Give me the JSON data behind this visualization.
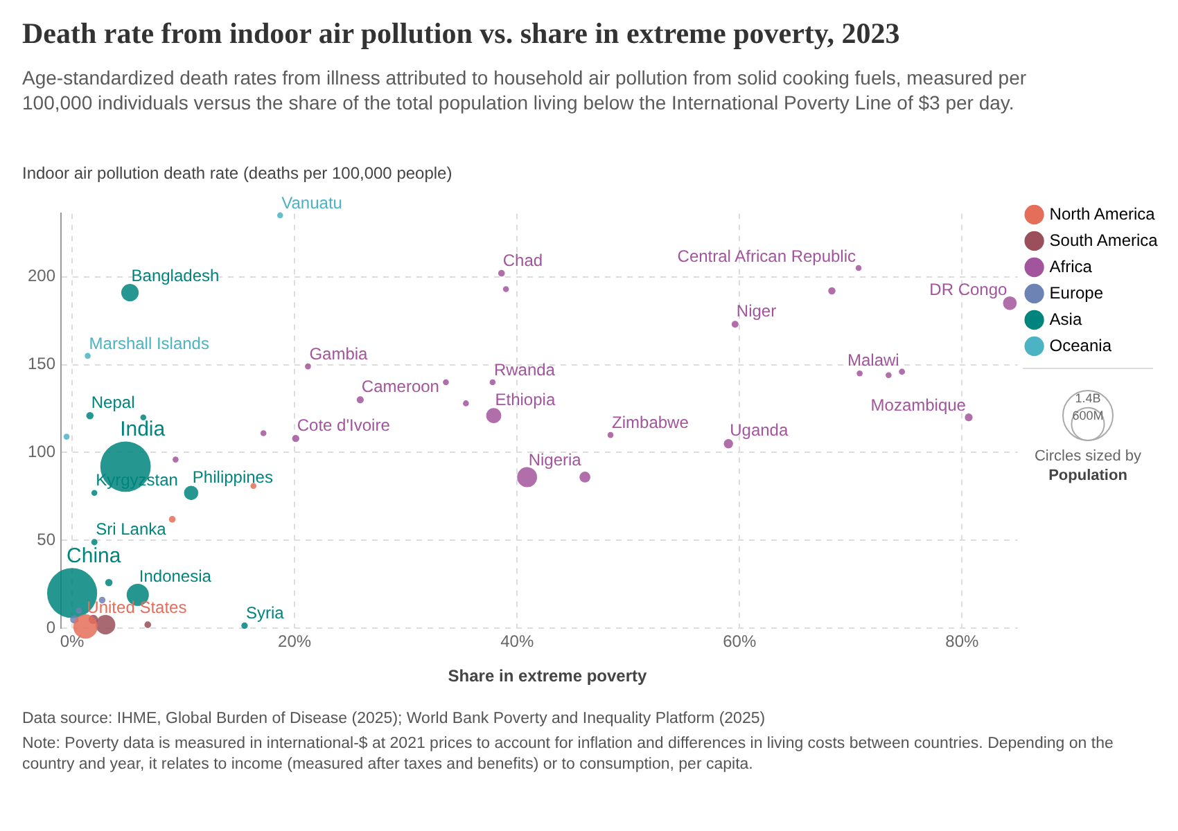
{
  "chart_data": {
    "type": "bubble",
    "title": "Death rate from indoor air pollution vs. share in extreme poverty, 2023",
    "subtitle": "Age-standardized death rates from illness attributed to household air pollution from solid cooking fuels, measured per 100,000 individuals versus the share of the total population living below the International Poverty Line of $3 per day.",
    "ylabel": "Indoor air pollution death rate (deaths per 100,000 people)",
    "xlabel": "Share in extreme poverty",
    "xlim": [
      -1,
      85
    ],
    "xticks": [
      {
        "value": 0,
        "label": "0%"
      },
      {
        "value": 20,
        "label": "20%"
      },
      {
        "value": 40,
        "label": "40%"
      },
      {
        "value": 60,
        "label": "60%"
      },
      {
        "value": 80,
        "label": "80%"
      }
    ],
    "ylim": [
      0,
      236
    ],
    "yticks": [
      0,
      50,
      100,
      150,
      200
    ],
    "grid": true,
    "legend": "top right",
    "marker": "circle",
    "size_legend": [
      {
        "value": 1400,
        "label": "1.4B"
      },
      {
        "value": 600,
        "label": "600M"
      }
    ],
    "series": [
      {
        "name": "North America",
        "color": "#e56e5a",
        "x": [
          1.2,
          9.0,
          16.3
        ],
        "values": [
          1,
          62,
          81
        ],
        "sizes": [
          335,
          25,
          20
        ]
      },
      {
        "name": "South America",
        "color": "#9a4f5b",
        "x": [
          3.0,
          6.8,
          1.9
        ],
        "values": [
          2,
          2,
          5
        ],
        "sizes": [
          216,
          25,
          50
        ]
      },
      {
        "name": "Africa",
        "color": "#a2559c",
        "x": [
          38.6,
          39.0,
          70.7,
          68.3,
          84.3,
          59.6,
          21.2,
          25.9,
          33.6,
          35.4,
          37.8,
          37.9,
          20.1,
          17.2,
          9.3,
          48.4,
          59.0,
          40.9,
          46.1,
          74.6,
          70.8,
          73.4,
          80.6
        ],
        "values": [
          202,
          193,
          205,
          192,
          185,
          173,
          149,
          130,
          140,
          128,
          140,
          121,
          108,
          111,
          96,
          110,
          105,
          86,
          86,
          146,
          145,
          144,
          120
        ],
        "sizes": [
          25,
          20,
          20,
          30,
          105,
          27,
          20,
          28,
          20,
          20,
          20,
          127,
          29,
          20,
          20,
          20,
          49,
          224,
          67,
          21,
          20,
          20,
          34
        ]
      },
      {
        "name": "Europe",
        "color": "#6d83b3",
        "x": [
          0.6,
          2.7,
          0.2
        ],
        "values": [
          10,
          16,
          5
        ],
        "sizes": [
          20,
          25,
          40
        ]
      },
      {
        "name": "Asia",
        "color": "#00847e",
        "x": [
          5.2,
          4.8,
          1.6,
          2.0,
          10.7,
          2.0,
          0,
          5.9,
          15.5,
          6.4,
          3.3
        ],
        "values": [
          191,
          92,
          121,
          77,
          77,
          49,
          20,
          19,
          1.5,
          120,
          26
        ],
        "sizes": [
          171,
          1430,
          30,
          20,
          115,
          22,
          1410,
          278,
          23,
          20,
          30
        ]
      },
      {
        "name": "Oceania",
        "color": "#4cb3c4",
        "x": [
          18.7,
          1.4,
          -0.5
        ],
        "values": [
          235,
          155,
          109
        ],
        "sizes": [
          20,
          20,
          20
        ]
      }
    ],
    "annotations": [
      {
        "text": "Vanuatu",
        "x": 18.7,
        "y": 235
      },
      {
        "text": "Bangladesh",
        "x": 5.2,
        "y": 191
      },
      {
        "text": "Marshall Islands",
        "x": 1.4,
        "y": 155
      },
      {
        "text": "Nepal",
        "x": 1.6,
        "y": 121
      },
      {
        "text": "India",
        "x": 4.8,
        "y": 92
      },
      {
        "text": "Kyrgyzstan",
        "x": 2.0,
        "y": 77
      },
      {
        "text": "Philippines",
        "x": 10.7,
        "y": 77
      },
      {
        "text": "Sri Lanka",
        "x": 2.0,
        "y": 49
      },
      {
        "text": "China",
        "x": 0,
        "y": 20
      },
      {
        "text": "Indonesia",
        "x": 5.9,
        "y": 19
      },
      {
        "text": "United States",
        "x": 1.2,
        "y": 1
      },
      {
        "text": "Syria",
        "x": 15.5,
        "y": 1.5
      },
      {
        "text": "Chad",
        "x": 38.6,
        "y": 202
      },
      {
        "text": "Central African Republic",
        "x": 70.7,
        "y": 205
      },
      {
        "text": "DR Congo",
        "x": 84.3,
        "y": 185
      },
      {
        "text": "Niger",
        "x": 59.6,
        "y": 173
      },
      {
        "text": "Gambia",
        "x": 21.2,
        "y": 149
      },
      {
        "text": "Cameroon",
        "x": 25.9,
        "y": 130
      },
      {
        "text": "Rwanda",
        "x": 37.8,
        "y": 140
      },
      {
        "text": "Ethiopia",
        "x": 37.9,
        "y": 121
      },
      {
        "text": "Cote d'Ivoire",
        "x": 20.1,
        "y": 108
      },
      {
        "text": "Zimbabwe",
        "x": 48.4,
        "y": 110
      },
      {
        "text": "Uganda",
        "x": 59.0,
        "y": 105
      },
      {
        "text": "Nigeria",
        "x": 40.9,
        "y": 86
      },
      {
        "text": "Malawi",
        "x": 74.6,
        "y": 146
      },
      {
        "text": "Mozambique",
        "x": 80.6,
        "y": 120
      },
      "Circles sized by Population",
      "Data source: IHME, Global Burden of Disease (2025); World Bank Poverty and Inequality Platform (2025)",
      "Note: Poverty data is measured in international-$ at 2021 prices to account for inflation and differences in living costs between countries. Depending on the country and year, it relates to income (measured after taxes and benefits) or to consumption, per capita."
    ]
  }
}
